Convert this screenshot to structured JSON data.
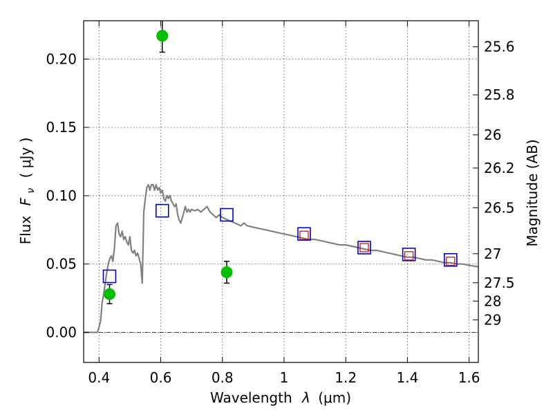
{
  "chart_data": {
    "type": "line",
    "xlabel": "Wavelength",
    "xlabel_symbol": "λ",
    "xlabel_unit": "(μm)",
    "ylabel": "Flux",
    "ylabel_symbol": "F",
    "ylabel_symbol_sub": "ν",
    "ylabel_unit": "( μJy )",
    "y2label": "Magnitude (AB)",
    "xlim": [
      0.35,
      1.63
    ],
    "ylim": [
      -0.022,
      0.228
    ],
    "grid": true,
    "x_ticks": [
      {
        "value": 0.4,
        "label": "0.4"
      },
      {
        "value": 0.6,
        "label": "0.6"
      },
      {
        "value": 0.8,
        "label": "0.8"
      },
      {
        "value": 1.0,
        "label": "1"
      },
      {
        "value": 1.2,
        "label": "1.2"
      },
      {
        "value": 1.4,
        "label": "1.4"
      },
      {
        "value": 1.6,
        "label": "1.6"
      }
    ],
    "y_ticks": [
      {
        "value": 0.0,
        "label": "0.00"
      },
      {
        "value": 0.05,
        "label": "0.05"
      },
      {
        "value": 0.1,
        "label": "0.10"
      },
      {
        "value": 0.15,
        "label": "0.15"
      },
      {
        "value": 0.2,
        "label": "0.20"
      }
    ],
    "y2_ticks": [
      {
        "value": 25.6,
        "label": "25.6"
      },
      {
        "value": 25.8,
        "label": "25.8"
      },
      {
        "value": 26.0,
        "label": "26"
      },
      {
        "value": 26.2,
        "label": "26.2"
      },
      {
        "value": 26.5,
        "label": "26.5"
      },
      {
        "value": 27.0,
        "label": "27"
      },
      {
        "value": 27.5,
        "label": "27.5"
      },
      {
        "value": 28.0,
        "label": "28"
      },
      {
        "value": 29.0,
        "label": "29"
      }
    ],
    "colors": {
      "model": "#808080",
      "observed": "#00c000",
      "model_photometry": "#0000cc",
      "inner_square": "#cc0000"
    },
    "series": [
      {
        "type": "line",
        "x": [
          0.35,
          0.395,
          0.405,
          0.41,
          0.415,
          0.42,
          0.425,
          0.43,
          0.435,
          0.44,
          0.445,
          0.45,
          0.455,
          0.46,
          0.465,
          0.47,
          0.475,
          0.48,
          0.485,
          0.49,
          0.495,
          0.5,
          0.505,
          0.51,
          0.515,
          0.52,
          0.525,
          0.53,
          0.535,
          0.54,
          0.545,
          0.55,
          0.555,
          0.56,
          0.565,
          0.57,
          0.575,
          0.58,
          0.585,
          0.59,
          0.595,
          0.6,
          0.605,
          0.61,
          0.615,
          0.62,
          0.625,
          0.63,
          0.635,
          0.64,
          0.645,
          0.65,
          0.655,
          0.66,
          0.665,
          0.67,
          0.675,
          0.68,
          0.685,
          0.69,
          0.695,
          0.7,
          0.71,
          0.72,
          0.73,
          0.74,
          0.75,
          0.76,
          0.77,
          0.78,
          0.79,
          0.8,
          0.82,
          0.84,
          0.86,
          0.87,
          0.88,
          0.9,
          0.92,
          0.94,
          0.96,
          0.98,
          1.0,
          1.02,
          1.04,
          1.06,
          1.08,
          1.1,
          1.12,
          1.14,
          1.16,
          1.18,
          1.2,
          1.22,
          1.24,
          1.26,
          1.28,
          1.3,
          1.32,
          1.34,
          1.36,
          1.38,
          1.4,
          1.42,
          1.44,
          1.46,
          1.48,
          1.5,
          1.52,
          1.54,
          1.56,
          1.58,
          1.6,
          1.63
        ],
        "y": [
          0.0,
          0.0,
          0.008,
          0.022,
          0.028,
          0.036,
          0.044,
          0.05,
          0.054,
          0.056,
          0.052,
          0.062,
          0.078,
          0.08,
          0.072,
          0.07,
          0.074,
          0.068,
          0.07,
          0.066,
          0.064,
          0.07,
          0.06,
          0.058,
          0.06,
          0.056,
          0.058,
          0.054,
          0.05,
          0.036,
          0.088,
          0.098,
          0.106,
          0.108,
          0.104,
          0.108,
          0.108,
          0.104,
          0.108,
          0.104,
          0.106,
          0.102,
          0.104,
          0.098,
          0.096,
          0.1,
          0.098,
          0.1,
          0.096,
          0.094,
          0.092,
          0.094,
          0.086,
          0.082,
          0.08,
          0.084,
          0.088,
          0.092,
          0.088,
          0.09,
          0.088,
          0.09,
          0.089,
          0.09,
          0.088,
          0.09,
          0.092,
          0.088,
          0.086,
          0.084,
          0.086,
          0.084,
          0.082,
          0.08,
          0.078,
          0.08,
          0.078,
          0.077,
          0.076,
          0.075,
          0.074,
          0.073,
          0.072,
          0.071,
          0.07,
          0.069,
          0.068,
          0.068,
          0.067,
          0.066,
          0.065,
          0.064,
          0.064,
          0.063,
          0.062,
          0.061,
          0.06,
          0.06,
          0.059,
          0.058,
          0.057,
          0.056,
          0.055,
          0.055,
          0.054,
          0.053,
          0.053,
          0.052,
          0.051,
          0.051,
          0.05,
          0.05,
          0.049,
          0.048
        ]
      },
      {
        "type": "scatter",
        "marker": "square",
        "x": [
          0.434,
          0.605,
          0.814,
          1.065,
          1.26,
          1.405,
          1.54
        ],
        "y": [
          0.041,
          0.089,
          0.086,
          0.072,
          0.062,
          0.057,
          0.053
        ],
        "inner_x": [
          1.065,
          1.26,
          1.405,
          1.54
        ],
        "inner_y": [
          0.071,
          0.062,
          0.056,
          0.052
        ]
      },
      {
        "type": "scatter",
        "marker": "circle",
        "x": [
          0.434,
          0.605,
          0.814
        ],
        "y": [
          0.028,
          0.217,
          0.044
        ],
        "yerr": [
          0.007,
          0.012,
          0.008
        ]
      }
    ]
  }
}
